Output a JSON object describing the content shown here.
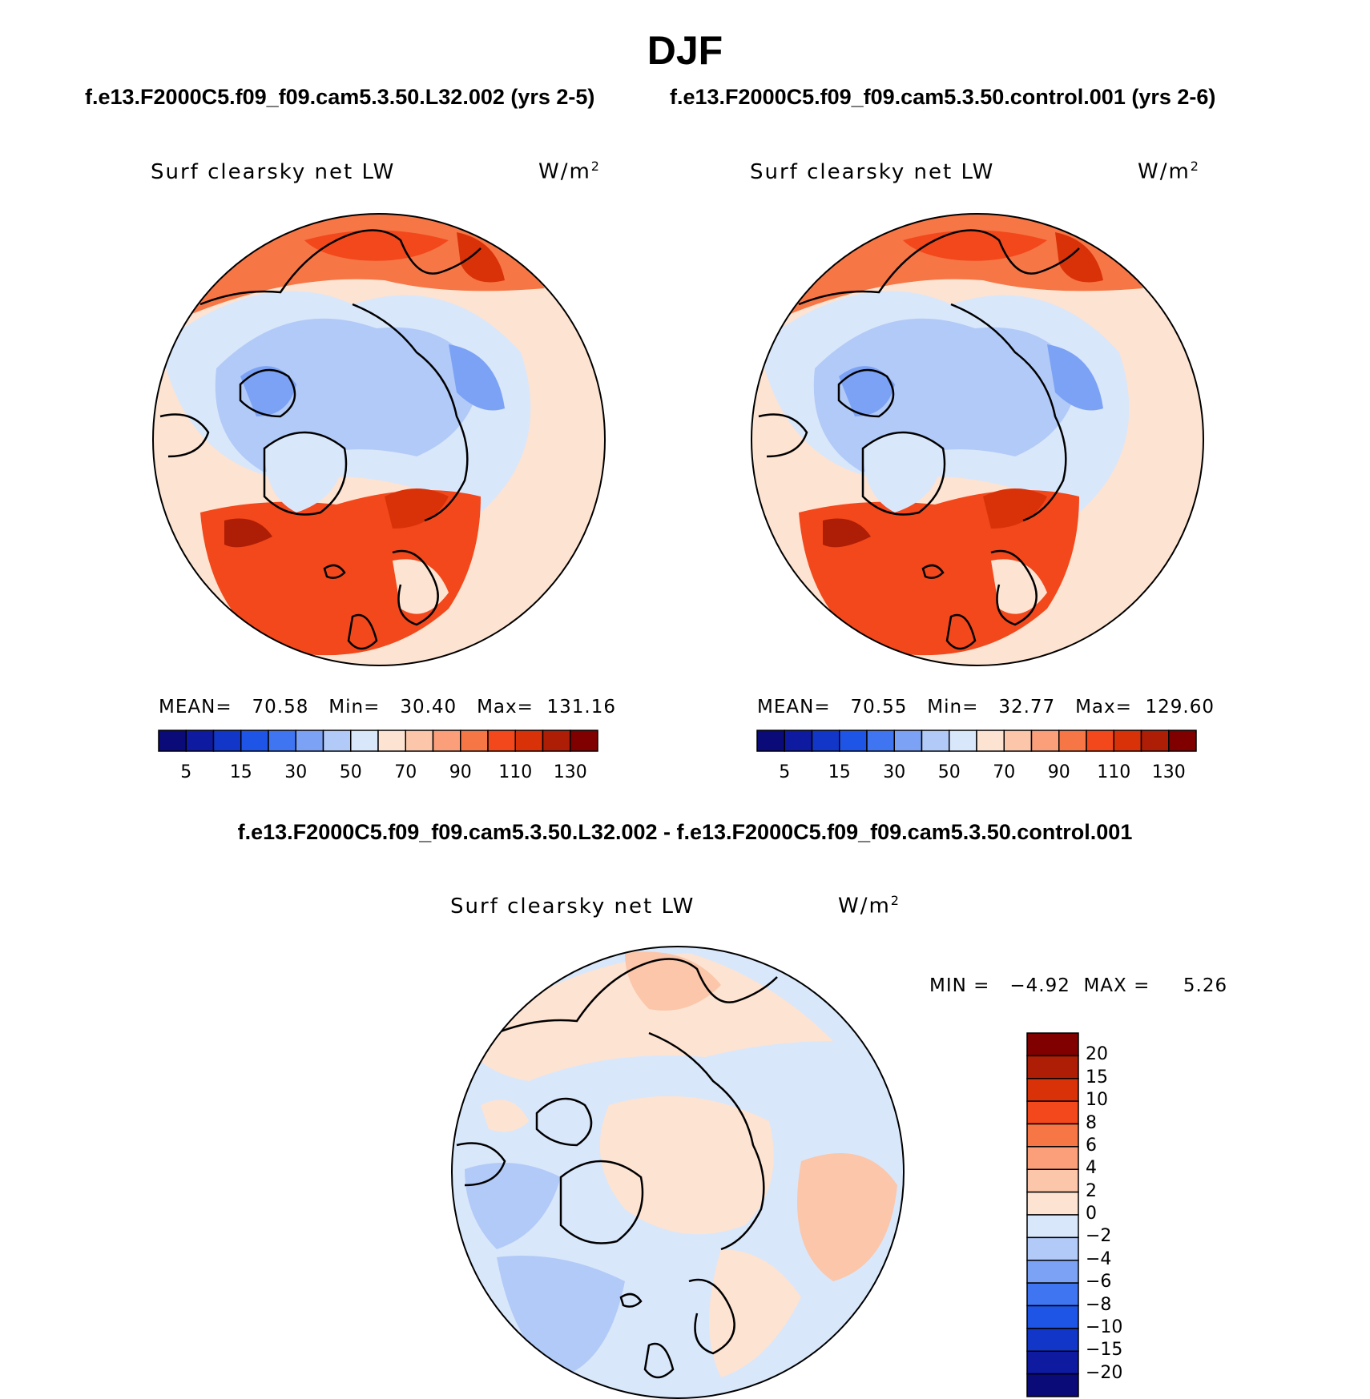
{
  "season": "DJF",
  "titles": {
    "case1": "f.e13.F2000C5.f09_f09.cam5.3.50.L32.002 (yrs 2-5)",
    "case2": "f.e13.F2000C5.f09_f09.cam5.3.50.control.001 (yrs 2-6)",
    "difference": "f.e13.F2000C5.f09_f09.cam5.3.50.L32.002 - f.e13.F2000C5.f09_f09.cam5.3.50.control.001"
  },
  "panels": [
    {
      "variable": "Surf clearsky net LW",
      "units": "W/m",
      "units_superscript": "2",
      "stats": "MEAN=   70.58   Min=   30.40   Max=  131.16"
    },
    {
      "variable": "Surf clearsky net LW",
      "units": "W/m",
      "units_superscript": "2",
      "stats": "MEAN=   70.55   Min=   32.77   Max=  129.60"
    },
    {
      "variable": "Surf clearsky net LW",
      "units": "W/m",
      "units_superscript": "2",
      "stats": "MIN =   −4.92  MAX =     5.26"
    }
  ],
  "colorbar_abs": {
    "colors": [
      "#0a0a78",
      "#0e1aa0",
      "#1237c8",
      "#1f55e6",
      "#3f75f0",
      "#7ca2f5",
      "#b2caf7",
      "#d9e7fb",
      "#fde3d2",
      "#fbc6a9",
      "#fa9f7a",
      "#f77646",
      "#f2481b",
      "#d93209",
      "#ae1d05",
      "#800000"
    ],
    "tick_labels": [
      "5",
      "15",
      "30",
      "50",
      "70",
      "90",
      "110",
      "130"
    ]
  },
  "colorbar_diff": {
    "colors": [
      "#800000",
      "#ae1d05",
      "#d93209",
      "#f2481b",
      "#f77646",
      "#fa9f7a",
      "#fbc6a9",
      "#fde3d2",
      "#d9e7fb",
      "#b2caf7",
      "#7ca2f5",
      "#3f75f0",
      "#1f55e6",
      "#1237c8",
      "#0e1aa0",
      "#0a0a78"
    ],
    "tick_labels": [
      "20",
      "15",
      "10",
      "8",
      "6",
      "4",
      "2",
      "0",
      "−2",
      "−4",
      "−6",
      "−8",
      "−10",
      "−15",
      "−20"
    ]
  }
}
